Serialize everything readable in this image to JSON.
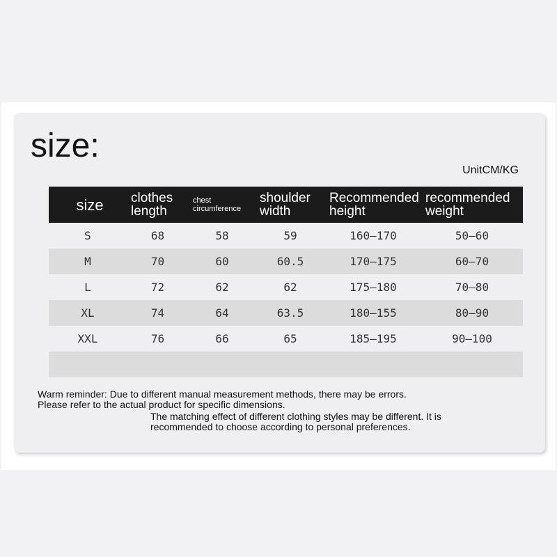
{
  "title": "size:",
  "unit": "UnitCM/KG",
  "headers": [
    "size",
    "clothes length",
    "chest circumference",
    "shoulder width",
    "Recommended height",
    "recommended weight"
  ],
  "rows": [
    [
      "S",
      "68",
      "58",
      "59",
      "160–170",
      "50–60"
    ],
    [
      "M",
      "70",
      "60",
      "60.5",
      "170–175",
      "60–70"
    ],
    [
      "L",
      "72",
      "62",
      "62",
      "175–180",
      "70–80"
    ],
    [
      "XL",
      "74",
      "64",
      "63.5",
      "180–155",
      "80–90"
    ],
    [
      "XXL",
      "76",
      "66",
      "65",
      "185–195",
      "90–100"
    ],
    [
      "",
      "",
      "",
      "",
      "",
      ""
    ]
  ],
  "notes": {
    "line1": "Warm reminder: Due to different manual measurement methods, there may be errors.",
    "line2": "Please refer to the actual product for specific dimensions.",
    "line3": "The matching effect of different clothing styles may be different. It is recommended to choose according to personal preferences."
  }
}
